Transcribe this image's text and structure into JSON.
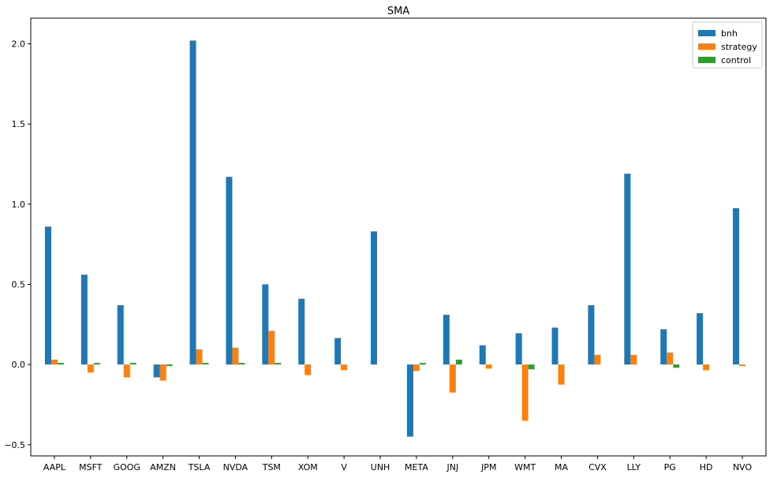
{
  "chart_data": {
    "type": "bar",
    "title": "SMA",
    "xlabel": "",
    "ylabel": "",
    "categories": [
      "AAPL",
      "MSFT",
      "GOOG",
      "AMZN",
      "TSLA",
      "NVDA",
      "TSM",
      "XOM",
      "V",
      "UNH",
      "META",
      "JNJ",
      "JPM",
      "WMT",
      "MA",
      "CVX",
      "LLY",
      "PG",
      "HD",
      "NVO"
    ],
    "series": [
      {
        "name": "bnh",
        "color": "#1f77b4",
        "values": [
          0.86,
          0.56,
          0.37,
          -0.08,
          2.02,
          1.17,
          0.5,
          0.41,
          0.165,
          0.83,
          -0.45,
          0.31,
          0.12,
          0.195,
          0.23,
          0.37,
          1.19,
          0.22,
          0.32,
          0.975
        ]
      },
      {
        "name": "strategy",
        "color": "#ff7f0e",
        "values": [
          0.03,
          -0.05,
          -0.08,
          -0.1,
          0.095,
          0.105,
          0.21,
          -0.065,
          -0.035,
          0.0,
          -0.04,
          -0.175,
          -0.025,
          -0.35,
          -0.125,
          0.06,
          0.06,
          0.075,
          -0.035,
          -0.01
        ]
      },
      {
        "name": "control",
        "color": "#2ca02c",
        "values": [
          0.01,
          0.01,
          0.01,
          -0.01,
          0.01,
          0.01,
          0.01,
          0.0,
          0.0,
          0.0,
          0.01,
          0.03,
          0.0,
          -0.03,
          0.0,
          0.0,
          0.0,
          -0.02,
          0.0,
          0.0
        ]
      }
    ],
    "yticks": [
      -0.5,
      0.0,
      0.5,
      1.0,
      1.5,
      2.0
    ],
    "ytick_labels": [
      "−0.5",
      "0.0",
      "0.5",
      "1.0",
      "1.5",
      "2.0"
    ],
    "ylim": [
      -0.57,
      2.16
    ],
    "grid": false,
    "legend": "top-right"
  }
}
